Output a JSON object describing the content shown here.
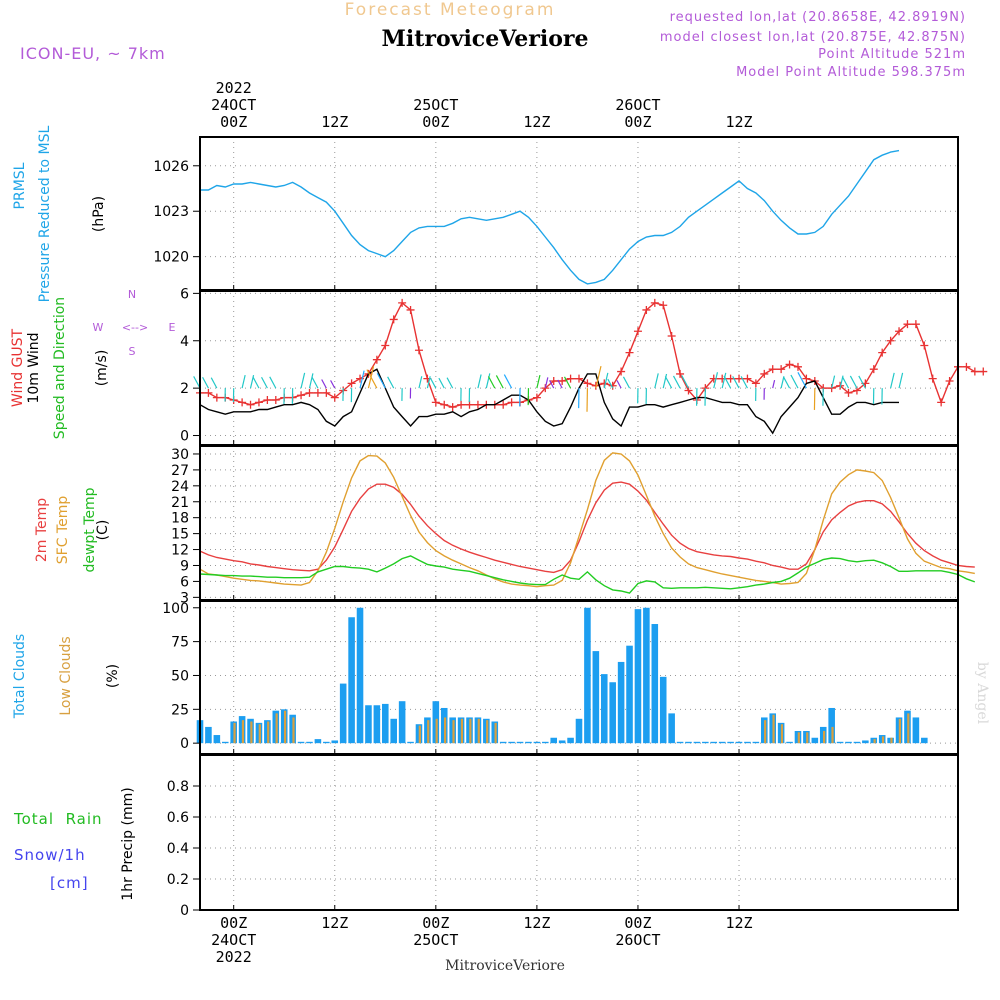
{
  "header": {
    "subtitle": "Forecast Meteogram",
    "station": "MitroviceVeriore",
    "model": "ICON-EU, ~ 7km",
    "requested": "requested lon,lat (20.8658E, 42.8919N)",
    "closest": "model closest lon,lat (20.875E, 42.875N)",
    "point_alt": "Point Altitude 521m",
    "model_alt": "Model Point Altitude 598.375m"
  },
  "time_axis": {
    "top": [
      {
        "lines": [
          "2022",
          "24OCT",
          "00Z"
        ],
        "hour": 0
      },
      {
        "lines": [
          "12Z"
        ],
        "hour": 12
      },
      {
        "lines": [
          "25OCT",
          "00Z"
        ],
        "hour": 24
      },
      {
        "lines": [
          "12Z"
        ],
        "hour": 36
      },
      {
        "lines": [
          "26OCT",
          "00Z"
        ],
        "hour": 48
      },
      {
        "lines": [
          "12Z"
        ],
        "hour": 60
      }
    ],
    "bottom": [
      {
        "lines": [
          "00Z",
          "24OCT",
          "2022"
        ],
        "hour": 0
      },
      {
        "lines": [
          "12Z"
        ],
        "hour": 12
      },
      {
        "lines": [
          "00Z",
          "25OCT"
        ],
        "hour": 24
      },
      {
        "lines": [
          "12Z"
        ],
        "hour": 36
      },
      {
        "lines": [
          "00Z",
          "26OCT"
        ],
        "hour": 48
      },
      {
        "lines": [
          "12Z"
        ],
        "hour": 60
      }
    ],
    "footer": "MitroviceVeriore",
    "credit": "by Angel"
  },
  "panels": {
    "pressure": {
      "label1": "PRMSL",
      "label2": "Pressure Reduced to MSL",
      "unit": "(hPa)"
    },
    "wind": {
      "label1": "Wind GUST",
      "label2": "10m Wind",
      "label3": "Speed and Direction",
      "unit": "(m/s)",
      "compass_n": "N",
      "compass_s": "S",
      "compass_w": "W",
      "compass_e": "E"
    },
    "temp": {
      "label1": "2m Temp",
      "label2": "SFC Temp",
      "label3": "dewpt Temp",
      "unit": "(C)"
    },
    "clouds": {
      "label1": "Total Clouds",
      "label2": "Low Clouds",
      "unit": "(%)"
    },
    "precip": {
      "label": "1hr Precip (mm)",
      "side1a": "Total",
      "side1b": "Rain",
      "side2": "Snow/1h",
      "side3": "[cm]"
    }
  },
  "colors": {
    "pressure": "#1fa5e8",
    "gust": "#e83232",
    "wind": "#000000",
    "t2m": "#e84040",
    "tsfc": "#e0a030",
    "dewpt": "#22cc22",
    "total_cloud": "#1c9ef0",
    "low_cloud": "#d8a040",
    "purple": "#b35bd8",
    "green": "#22bb22",
    "blue": "#4444ee"
  },
  "chart_data": [
    {
      "type": "line",
      "title": "Pressure Reduced to MSL",
      "ylabel": "hPa",
      "ylim": [
        1017.8,
        1027.9
      ],
      "yticks": [
        1020,
        1023,
        1026
      ],
      "x_start": -4,
      "x_step": 1,
      "series": [
        {
          "name": "PRMSL",
          "values": [
            1024.4,
            1024.4,
            1024.7,
            1024.6,
            1024.8,
            1024.8,
            1024.9,
            1024.8,
            1024.7,
            1024.6,
            1024.7,
            1024.9,
            1024.6,
            1024.2,
            1023.9,
            1023.6,
            1023.0,
            1022.2,
            1021.4,
            1020.8,
            1020.4,
            1020.2,
            1020.0,
            1020.4,
            1021.0,
            1021.6,
            1021.9,
            1022.0,
            1022.0,
            1022.0,
            1022.2,
            1022.5,
            1022.6,
            1022.5,
            1022.4,
            1022.5,
            1022.6,
            1022.8,
            1023.0,
            1022.6,
            1022.0,
            1021.3,
            1020.6,
            1019.8,
            1019.1,
            1018.5,
            1018.2,
            1018.3,
            1018.5,
            1019.1,
            1019.8,
            1020.5,
            1021.0,
            1021.3,
            1021.4,
            1021.4,
            1021.6,
            1022.0,
            1022.6,
            1023.0,
            1023.4,
            1023.8,
            1024.2,
            1024.6,
            1025.0,
            1024.5,
            1024.2,
            1023.7,
            1023.0,
            1022.4,
            1021.9,
            1021.5,
            1021.5,
            1021.6,
            1022.0,
            1022.8,
            1023.4,
            1024.0,
            1024.8,
            1025.6,
            1026.4,
            1026.7,
            1026.9,
            1027.0
          ]
        }
      ]
    },
    {
      "type": "line",
      "title": "Wind GUST / 10m Wind Speed and Direction",
      "ylabel": "m/s",
      "ylim": [
        -0.4,
        6.1
      ],
      "yticks": [
        0,
        2,
        4,
        6
      ],
      "x_start": -4,
      "x_step": 1,
      "series": [
        {
          "name": "Wind GUST",
          "values": [
            1.8,
            1.8,
            1.6,
            1.6,
            1.5,
            1.4,
            1.3,
            1.4,
            1.5,
            1.5,
            1.6,
            1.6,
            1.7,
            1.8,
            1.8,
            1.8,
            1.6,
            1.9,
            2.2,
            2.4,
            2.6,
            3.2,
            3.8,
            4.9,
            5.6,
            5.3,
            3.6,
            2.4,
            1.4,
            1.3,
            1.2,
            1.3,
            1.3,
            1.3,
            1.3,
            1.3,
            1.3,
            1.4,
            1.4,
            1.5,
            1.6,
            2.0,
            2.3,
            2.3,
            2.4,
            2.4,
            2.2,
            2.1,
            2.2,
            2.1,
            2.7,
            3.5,
            4.4,
            5.3,
            5.6,
            5.5,
            4.2,
            2.6,
            1.9,
            1.5,
            2.0,
            2.4,
            2.4,
            2.4,
            2.4,
            2.4,
            2.2,
            2.6,
            2.8,
            2.8,
            3.0,
            2.9,
            2.4,
            2.3,
            2.0,
            2.0,
            2.1,
            1.8,
            1.9,
            2.2,
            2.8,
            3.5,
            4.0,
            4.4,
            4.7,
            4.7,
            3.8,
            2.4,
            1.4,
            2.3,
            2.9,
            2.9,
            2.7,
            2.7
          ]
        },
        {
          "name": "10m Wind",
          "values": [
            1.3,
            1.1,
            1.0,
            0.9,
            1.0,
            1.0,
            1.0,
            1.1,
            1.1,
            1.2,
            1.3,
            1.3,
            1.4,
            1.3,
            1.1,
            0.6,
            0.4,
            0.8,
            1.0,
            1.8,
            2.6,
            2.8,
            2.0,
            1.2,
            0.8,
            0.4,
            0.8,
            0.8,
            0.9,
            0.9,
            1.0,
            0.8,
            1.0,
            1.1,
            1.3,
            1.3,
            1.5,
            1.7,
            1.7,
            1.5,
            1.0,
            0.6,
            0.4,
            0.5,
            1.2,
            2.0,
            2.6,
            2.6,
            1.4,
            0.7,
            0.4,
            1.2,
            1.2,
            1.3,
            1.3,
            1.2,
            1.3,
            1.4,
            1.5,
            1.6,
            1.6,
            1.5,
            1.4,
            1.4,
            1.3,
            1.3,
            0.8,
            0.6,
            0.1,
            0.8,
            1.2,
            1.6,
            2.2,
            2.3,
            1.6,
            0.9,
            0.9,
            1.2,
            1.4,
            1.4,
            1.3,
            1.4,
            1.4,
            1.4
          ]
        }
      ]
    },
    {
      "type": "line",
      "title": "2m Temp / SFC Temp / dewpt Temp",
      "ylabel": "C",
      "ylim": [
        2.5,
        31.5
      ],
      "yticks": [
        3,
        6,
        9,
        12,
        15,
        18,
        21,
        24,
        27,
        30
      ],
      "x_start": -4,
      "x_step": 1,
      "series": [
        {
          "name": "2m Temp",
          "values": [
            11.7,
            11.0,
            10.5,
            10.2,
            9.9,
            9.7,
            9.3,
            9.1,
            8.8,
            8.6,
            8.4,
            8.2,
            8.1,
            8.0,
            8.3,
            10.0,
            12.5,
            15.8,
            19.2,
            21.6,
            23.4,
            24.3,
            24.3,
            23.7,
            22.4,
            20.5,
            18.3,
            16.5,
            15.0,
            13.7,
            12.8,
            12.1,
            11.5,
            11.0,
            10.5,
            10.0,
            9.6,
            9.2,
            8.8,
            8.5,
            8.2,
            7.9,
            7.7,
            8.2,
            10.0,
            13.5,
            17.5,
            20.8,
            23.2,
            24.5,
            24.7,
            24.3,
            23.0,
            21.3,
            19.0,
            16.8,
            14.7,
            13.2,
            12.2,
            11.6,
            11.3,
            11.0,
            10.8,
            10.7,
            10.4,
            10.2,
            9.8,
            9.5,
            9.0,
            8.7,
            8.3,
            8.3,
            9.3,
            12.0,
            15.3,
            17.6,
            19.0,
            20.2,
            20.9,
            21.2,
            21.2,
            20.6,
            19.2,
            17.2,
            15.0,
            13.2,
            11.8,
            10.8,
            10.0,
            9.5,
            9.0,
            8.8,
            8.7
          ]
        },
        {
          "name": "SFC Temp",
          "values": [
            8.3,
            7.4,
            7.2,
            6.9,
            6.6,
            6.4,
            6.2,
            6.1,
            5.9,
            5.7,
            5.5,
            5.4,
            5.3,
            5.8,
            8.0,
            11.5,
            16.0,
            21.0,
            25.5,
            28.7,
            29.7,
            29.6,
            28.3,
            25.6,
            22.0,
            18.4,
            15.3,
            13.3,
            11.8,
            10.8,
            10.0,
            9.3,
            8.6,
            8.0,
            7.2,
            6.5,
            5.9,
            5.5,
            5.3,
            5.2,
            5.0,
            5.2,
            5.3,
            6.2,
            9.5,
            14.5,
            19.5,
            25.0,
            28.8,
            30.2,
            30.0,
            28.7,
            26.0,
            22.2,
            18.3,
            15.0,
            12.3,
            10.6,
            9.3,
            8.6,
            8.2,
            7.8,
            7.4,
            7.1,
            6.8,
            6.5,
            6.2,
            6.0,
            5.8,
            5.5,
            5.6,
            5.8,
            7.5,
            12.0,
            17.5,
            22.5,
            24.7,
            26.1,
            27.0,
            26.8,
            26.5,
            25.0,
            21.8,
            18.0,
            14.0,
            11.3,
            9.8,
            9.2,
            8.6,
            8.4,
            8.0,
            7.8,
            7.5
          ]
        },
        {
          "name": "dewpt Temp",
          "values": [
            7.4,
            7.3,
            7.2,
            7.1,
            7.1,
            7.0,
            7.0,
            6.9,
            6.8,
            6.8,
            6.7,
            6.7,
            6.7,
            6.8,
            7.8,
            8.3,
            8.8,
            8.8,
            8.6,
            8.5,
            8.3,
            7.8,
            8.5,
            9.3,
            10.3,
            10.8,
            10.0,
            9.2,
            8.9,
            8.7,
            8.3,
            8.1,
            7.9,
            7.5,
            7.1,
            6.7,
            6.3,
            6.0,
            5.7,
            5.5,
            5.4,
            5.4,
            6.4,
            7.2,
            6.6,
            6.4,
            7.8,
            6.3,
            5.2,
            4.4,
            4.2,
            3.8,
            5.6,
            6.1,
            5.9,
            4.8,
            4.7,
            4.8,
            4.8,
            4.8,
            4.9,
            4.8,
            4.7,
            4.6,
            4.8,
            5.0,
            5.3,
            5.5,
            5.8,
            6.0,
            6.6,
            7.6,
            8.7,
            9.4,
            10.1,
            10.4,
            10.3,
            9.9,
            9.7,
            9.9,
            10.0,
            9.5,
            8.8,
            7.9,
            7.9,
            8.0,
            8.0,
            8.0,
            8.0,
            7.7,
            7.3,
            6.5,
            5.9
          ]
        }
      ]
    },
    {
      "type": "bar",
      "title": "Total Clouds / Low Clouds",
      "ylabel": "%",
      "ylim": [
        -8,
        105
      ],
      "yticks": [
        0,
        25,
        50,
        75,
        100
      ],
      "x_start": -4,
      "x_step": 1,
      "series": [
        {
          "name": "Total Clouds",
          "values": [
            17,
            12,
            6,
            1,
            16,
            20,
            18,
            15,
            17,
            24,
            25,
            21,
            1,
            1,
            3,
            1,
            2,
            44,
            93,
            100,
            28,
            28,
            29,
            18,
            31,
            1,
            14,
            19,
            31,
            26,
            19,
            19,
            19,
            19,
            18,
            16,
            1,
            1,
            1,
            1,
            1,
            1,
            4,
            2,
            4,
            18,
            100,
            68,
            51,
            45,
            60,
            72,
            99,
            100,
            88,
            49,
            22,
            1,
            1,
            1,
            1,
            1,
            1,
            1,
            1,
            1,
            1,
            19,
            22,
            15,
            1,
            9,
            9,
            4,
            12,
            26,
            1,
            1,
            1,
            2,
            4,
            6,
            4,
            19,
            24,
            19,
            4
          ]
        },
        {
          "name": "Low Clouds",
          "values": [
            0,
            0,
            0,
            0,
            15,
            17,
            16,
            14,
            16,
            22,
            24,
            19,
            0,
            0,
            0,
            0,
            0,
            0,
            0,
            0,
            0,
            0,
            0,
            0,
            0,
            0,
            13,
            17,
            18,
            19,
            17,
            18,
            18,
            18,
            17,
            15,
            0,
            0,
            0,
            0,
            0,
            0,
            0,
            0,
            0,
            0,
            0,
            0,
            0,
            0,
            0,
            0,
            0,
            0,
            0,
            0,
            0,
            0,
            0,
            0,
            0,
            0,
            0,
            0,
            0,
            0,
            0,
            17,
            21,
            14,
            0,
            8,
            8,
            0,
            9,
            12,
            0,
            0,
            0,
            0,
            3,
            5,
            4,
            18,
            22,
            0,
            0
          ]
        }
      ]
    },
    {
      "type": "bar",
      "title": "1hr Precip",
      "ylabel": "mm",
      "ylim": [
        0,
        1.0
      ],
      "yticks": [
        0,
        0.2,
        0.4,
        0.6,
        0.8
      ],
      "x_start": -4,
      "x_step": 1,
      "series": [
        {
          "name": "Total Rain",
          "values": []
        }
      ]
    }
  ]
}
